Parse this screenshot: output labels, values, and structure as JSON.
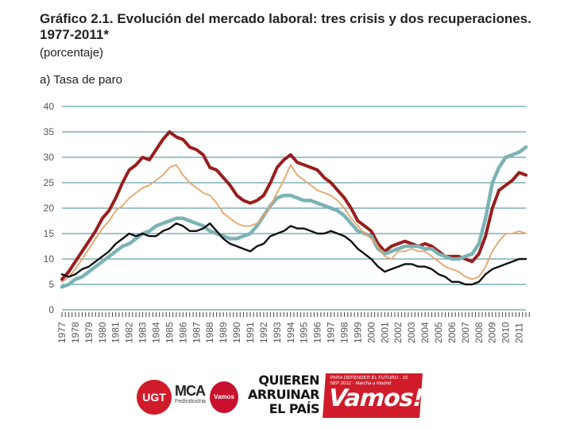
{
  "header": {
    "title": "Gráfico 2.1. Evolución del mercado laboral: tres crisis y dos recuperaciones. 1977-2011*",
    "subtitle": "(porcentaje)",
    "panel_label": "a) Tasa de paro"
  },
  "chart_data": {
    "type": "line",
    "title": "Gráfico 2.1. Evolución del mercado laboral: tres crisis y dos recuperaciones. 1977-2011*",
    "subtitle": "(porcentaje)",
    "panel": "a) Tasa de paro",
    "xlabel": "",
    "ylabel": "",
    "ylim": [
      0,
      40
    ],
    "yticks": [
      0,
      5,
      10,
      15,
      20,
      25,
      30,
      35,
      40
    ],
    "xlim": [
      1977,
      2011.5
    ],
    "xticks": [
      "1977",
      "1978",
      "1979",
      "1980",
      "1981",
      "1982",
      "1983",
      "1984",
      "1985",
      "1986",
      "1987",
      "1988",
      "1989",
      "1990",
      "1991",
      "1992",
      "1993",
      "1994",
      "1995",
      "1996",
      "1997",
      "1998",
      "1999",
      "2000",
      "2001",
      "2002",
      "2003",
      "2004",
      "2005",
      "2006",
      "2007",
      "2008",
      "2009",
      "2010",
      "2011"
    ],
    "grid": true,
    "legend": "none",
    "series": [
      {
        "name": "dark red",
        "color": "#9b1c1c",
        "x": [
          1977.0,
          1977.5,
          1978.0,
          1978.5,
          1979.0,
          1979.5,
          1980.0,
          1980.5,
          1981.0,
          1981.5,
          1982.0,
          1982.5,
          1983.0,
          1983.5,
          1984.0,
          1984.5,
          1985.0,
          1985.5,
          1986.0,
          1986.5,
          1987.0,
          1987.5,
          1988.0,
          1988.5,
          1989.0,
          1989.5,
          1990.0,
          1990.5,
          1991.0,
          1991.5,
          1992.0,
          1992.5,
          1993.0,
          1993.5,
          1994.0,
          1994.5,
          1995.0,
          1995.5,
          1996.0,
          1996.5,
          1997.0,
          1997.5,
          1998.0,
          1998.5,
          1999.0,
          1999.5,
          2000.0,
          2000.5,
          2001.0,
          2001.5,
          2002.0,
          2002.5,
          2003.0,
          2003.5,
          2004.0,
          2004.5,
          2005.0,
          2005.5,
          2006.0,
          2006.5,
          2007.0,
          2007.5,
          2008.0,
          2008.5,
          2009.0,
          2009.5,
          2010.0,
          2010.5,
          2011.0,
          2011.5
        ],
        "y": [
          6.0,
          7.5,
          9.5,
          11.5,
          13.5,
          15.5,
          18.0,
          19.5,
          22.0,
          25.0,
          27.5,
          28.5,
          30.0,
          29.5,
          31.5,
          33.5,
          35.0,
          34.0,
          33.5,
          32.0,
          31.5,
          30.5,
          28.0,
          27.5,
          26.0,
          24.5,
          22.5,
          21.5,
          21.0,
          21.5,
          22.5,
          25.0,
          28.0,
          29.5,
          30.5,
          29.0,
          28.5,
          28.0,
          27.5,
          26.0,
          25.0,
          23.5,
          22.0,
          20.0,
          17.5,
          16.5,
          15.5,
          13.0,
          11.5,
          12.5,
          13.0,
          13.5,
          13.0,
          12.5,
          13.0,
          12.5,
          11.5,
          10.5,
          10.5,
          10.5,
          10.0,
          9.5,
          11.0,
          14.5,
          20.0,
          23.5,
          24.5,
          25.5,
          27.0,
          26.5
        ]
      },
      {
        "name": "teal",
        "color": "#7bb3b5",
        "x": [
          1977.0,
          1977.5,
          1978.0,
          1978.5,
          1979.0,
          1979.5,
          1980.0,
          1980.5,
          1981.0,
          1981.5,
          1982.0,
          1982.5,
          1983.0,
          1983.5,
          1984.0,
          1984.5,
          1985.0,
          1985.5,
          1986.0,
          1986.5,
          1987.0,
          1987.5,
          1988.0,
          1988.5,
          1989.0,
          1989.5,
          1990.0,
          1990.5,
          1991.0,
          1991.5,
          1992.0,
          1992.5,
          1993.0,
          1993.5,
          1994.0,
          1994.5,
          1995.0,
          1995.5,
          1996.0,
          1996.5,
          1997.0,
          1997.5,
          1998.0,
          1998.5,
          1999.0,
          1999.5,
          2000.0,
          2000.5,
          2001.0,
          2001.5,
          2002.0,
          2002.5,
          2003.0,
          2003.5,
          2004.0,
          2004.5,
          2005.0,
          2005.5,
          2006.0,
          2006.5,
          2007.0,
          2007.5,
          2008.0,
          2008.5,
          2009.0,
          2009.5,
          2010.0,
          2010.5,
          2011.0,
          2011.5
        ],
        "y": [
          4.5,
          5.0,
          6.0,
          6.5,
          7.5,
          8.5,
          9.5,
          10.5,
          11.5,
          12.5,
          13.0,
          14.0,
          15.0,
          15.5,
          16.5,
          17.0,
          17.5,
          18.0,
          18.0,
          17.5,
          17.0,
          16.5,
          15.5,
          15.0,
          14.5,
          14.0,
          14.0,
          14.5,
          15.0,
          16.5,
          18.5,
          20.5,
          22.0,
          22.5,
          22.5,
          22.0,
          21.5,
          21.5,
          21.0,
          20.5,
          20.0,
          19.5,
          18.5,
          17.0,
          15.5,
          15.0,
          14.5,
          12.0,
          11.0,
          11.5,
          12.0,
          12.5,
          12.5,
          12.5,
          12.0,
          12.0,
          11.0,
          10.5,
          10.0,
          10.0,
          10.5,
          11.0,
          13.0,
          18.0,
          25.0,
          28.0,
          30.0,
          30.5,
          31.0,
          32.0
        ]
      },
      {
        "name": "orange",
        "color": "#e8a468",
        "x": [
          1977.0,
          1977.5,
          1978.0,
          1978.5,
          1979.0,
          1979.5,
          1980.0,
          1980.5,
          1981.0,
          1981.5,
          1982.0,
          1982.5,
          1983.0,
          1983.5,
          1984.0,
          1984.5,
          1985.0,
          1985.5,
          1986.0,
          1986.5,
          1987.0,
          1987.5,
          1988.0,
          1988.5,
          1989.0,
          1989.5,
          1990.0,
          1990.5,
          1991.0,
          1991.5,
          1992.0,
          1992.5,
          1993.0,
          1993.5,
          1994.0,
          1994.5,
          1995.0,
          1995.5,
          1996.0,
          1996.5,
          1997.0,
          1997.5,
          1998.0,
          1998.5,
          1999.0,
          1999.5,
          2000.0,
          2000.5,
          2001.0,
          2001.5,
          2002.0,
          2002.5,
          2003.0,
          2003.5,
          2004.0,
          2004.5,
          2005.0,
          2005.5,
          2006.0,
          2006.5,
          2007.0,
          2007.5,
          2008.0,
          2008.5,
          2009.0,
          2009.5,
          2010.0,
          2010.5,
          2011.0,
          2011.5
        ],
        "y": [
          5.5,
          6.5,
          8.0,
          10.0,
          12.0,
          14.0,
          16.0,
          17.5,
          19.5,
          20.5,
          22.0,
          23.0,
          24.0,
          24.5,
          25.5,
          26.5,
          28.0,
          28.5,
          26.5,
          25.0,
          24.0,
          23.0,
          22.5,
          21.0,
          19.0,
          18.0,
          17.0,
          16.5,
          16.5,
          17.0,
          18.5,
          20.5,
          23.0,
          25.5,
          28.5,
          26.5,
          25.5,
          24.5,
          23.5,
          23.0,
          22.5,
          21.5,
          20.0,
          18.0,
          16.5,
          15.0,
          14.0,
          12.5,
          10.5,
          10.0,
          11.5,
          11.5,
          12.0,
          11.5,
          11.5,
          10.5,
          9.5,
          8.5,
          8.0,
          7.5,
          6.5,
          6.0,
          6.5,
          8.5,
          11.5,
          13.5,
          15.0,
          15.0,
          15.5,
          15.0
        ]
      },
      {
        "name": "black",
        "color": "#111111",
        "x": [
          1977.0,
          1977.5,
          1978.0,
          1978.5,
          1979.0,
          1979.5,
          1980.0,
          1980.5,
          1981.0,
          1981.5,
          1982.0,
          1982.5,
          1983.0,
          1983.5,
          1984.0,
          1984.5,
          1985.0,
          1985.5,
          1986.0,
          1986.5,
          1987.0,
          1987.5,
          1988.0,
          1988.5,
          1989.0,
          1989.5,
          1990.0,
          1990.5,
          1991.0,
          1991.5,
          1992.0,
          1992.5,
          1993.0,
          1993.5,
          1994.0,
          1994.5,
          1995.0,
          1995.5,
          1996.0,
          1996.5,
          1997.0,
          1997.5,
          1998.0,
          1998.5,
          1999.0,
          1999.5,
          2000.0,
          2000.5,
          2001.0,
          2001.5,
          2002.0,
          2002.5,
          2003.0,
          2003.5,
          2004.0,
          2004.5,
          2005.0,
          2005.5,
          2006.0,
          2006.5,
          2007.0,
          2007.5,
          2008.0,
          2008.5,
          2009.0,
          2009.5,
          2010.0,
          2010.5,
          2011.0,
          2011.5
        ],
        "y": [
          7.0,
          6.5,
          7.0,
          8.0,
          8.5,
          9.5,
          10.5,
          11.5,
          13.0,
          14.0,
          15.0,
          14.5,
          15.0,
          14.5,
          14.5,
          15.5,
          16.0,
          17.0,
          16.5,
          15.5,
          15.5,
          16.0,
          17.0,
          15.5,
          14.0,
          13.0,
          12.5,
          12.0,
          11.5,
          12.5,
          13.0,
          14.5,
          15.0,
          15.5,
          16.5,
          16.0,
          16.0,
          15.5,
          15.0,
          15.0,
          15.5,
          15.0,
          14.5,
          13.5,
          12.0,
          11.0,
          10.0,
          8.5,
          7.5,
          8.0,
          8.5,
          9.0,
          9.0,
          8.5,
          8.5,
          8.0,
          7.0,
          6.5,
          5.5,
          5.5,
          5.0,
          5.0,
          5.5,
          7.0,
          8.0,
          8.5,
          9.0,
          9.5,
          10.0,
          10.0
        ]
      }
    ]
  },
  "footer": {
    "logo_ugt": "UGT",
    "logo_mca": "MCA",
    "logo_mca_sub": "FedIndustria",
    "logo_vamos_small": "Vamos",
    "slogan_line1": "QUIEREN",
    "slogan_line2": "ARRUINAR",
    "slogan_line3": "EL PAÍS",
    "banner_small": "PARA DEFENDER EL FUTURO · 15 SEP 2012 · Marcha a Madrid",
    "banner_big": "Vamos!"
  }
}
